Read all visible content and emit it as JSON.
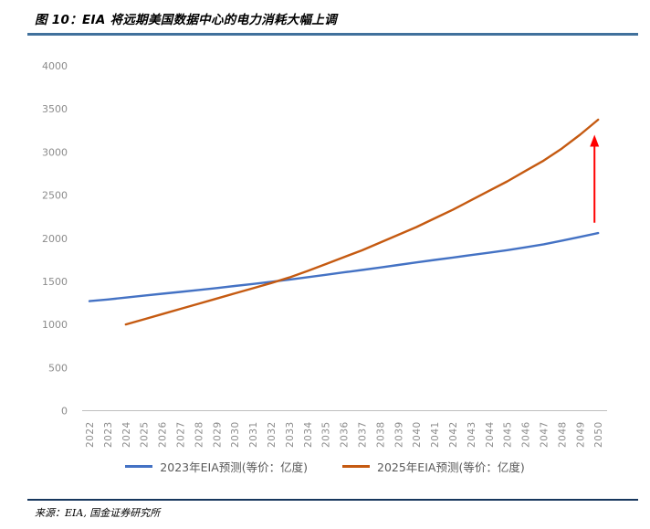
{
  "title": "图 10：EIA 将远期美国数据中心的电力消耗大幅上调",
  "source": "来源：EIA, 国金证券研究所",
  "colors": {
    "title_rule": "#41719C",
    "source_rule": "#17375E",
    "axis_text": "#8C8C8C",
    "axis_line": "#BFBFBF",
    "legend_text": "#595959",
    "arrow": "#FF0000",
    "series_2023": "#4472C4",
    "series_2025": "#C55A11"
  },
  "chart_data": {
    "type": "line",
    "title": "图 10：EIA 将远期美国数据中心的电力消耗大幅上调",
    "xlabel": "",
    "ylabel": "",
    "ylim": [
      0,
      4000
    ],
    "y_ticks": [
      0,
      500,
      1000,
      1500,
      2000,
      2500,
      3000,
      3500,
      4000
    ],
    "grid": false,
    "legend_position": "bottom",
    "categories": [
      "2022",
      "2023",
      "2024",
      "2025",
      "2026",
      "2027",
      "2028",
      "2029",
      "2030",
      "2031",
      "2032",
      "2033",
      "2034",
      "2035",
      "2036",
      "2037",
      "2038",
      "2039",
      "2040",
      "2041",
      "2042",
      "2043",
      "2044",
      "2045",
      "2046",
      "2047",
      "2048",
      "2049",
      "2050"
    ],
    "series": [
      {
        "name": "2023年EIA预测(等价：亿度)",
        "color": "#4472C4",
        "start_category": "2022",
        "values": [
          1270,
          1290,
          1312,
          1334,
          1356,
          1378,
          1400,
          1422,
          1446,
          1470,
          1495,
          1520,
          1548,
          1576,
          1604,
          1632,
          1660,
          1690,
          1720,
          1748,
          1776,
          1804,
          1832,
          1862,
          1895,
          1930,
          1972,
          2015,
          2060
        ]
      },
      {
        "name": "2025年EIA预测(等价：亿度)",
        "color": "#C55A11",
        "start_category": "2024",
        "values": [
          1000,
          1060,
          1120,
          1180,
          1240,
          1300,
          1360,
          1420,
          1480,
          1545,
          1620,
          1700,
          1780,
          1860,
          1950,
          2040,
          2130,
          2230,
          2330,
          2440,
          2550,
          2660,
          2780,
          2900,
          3040,
          3200,
          3375
        ]
      }
    ],
    "annotation": {
      "type": "up-arrow",
      "at_category": "2050",
      "from_value": 2180,
      "to_value": 3200,
      "color": "#FF0000"
    }
  }
}
